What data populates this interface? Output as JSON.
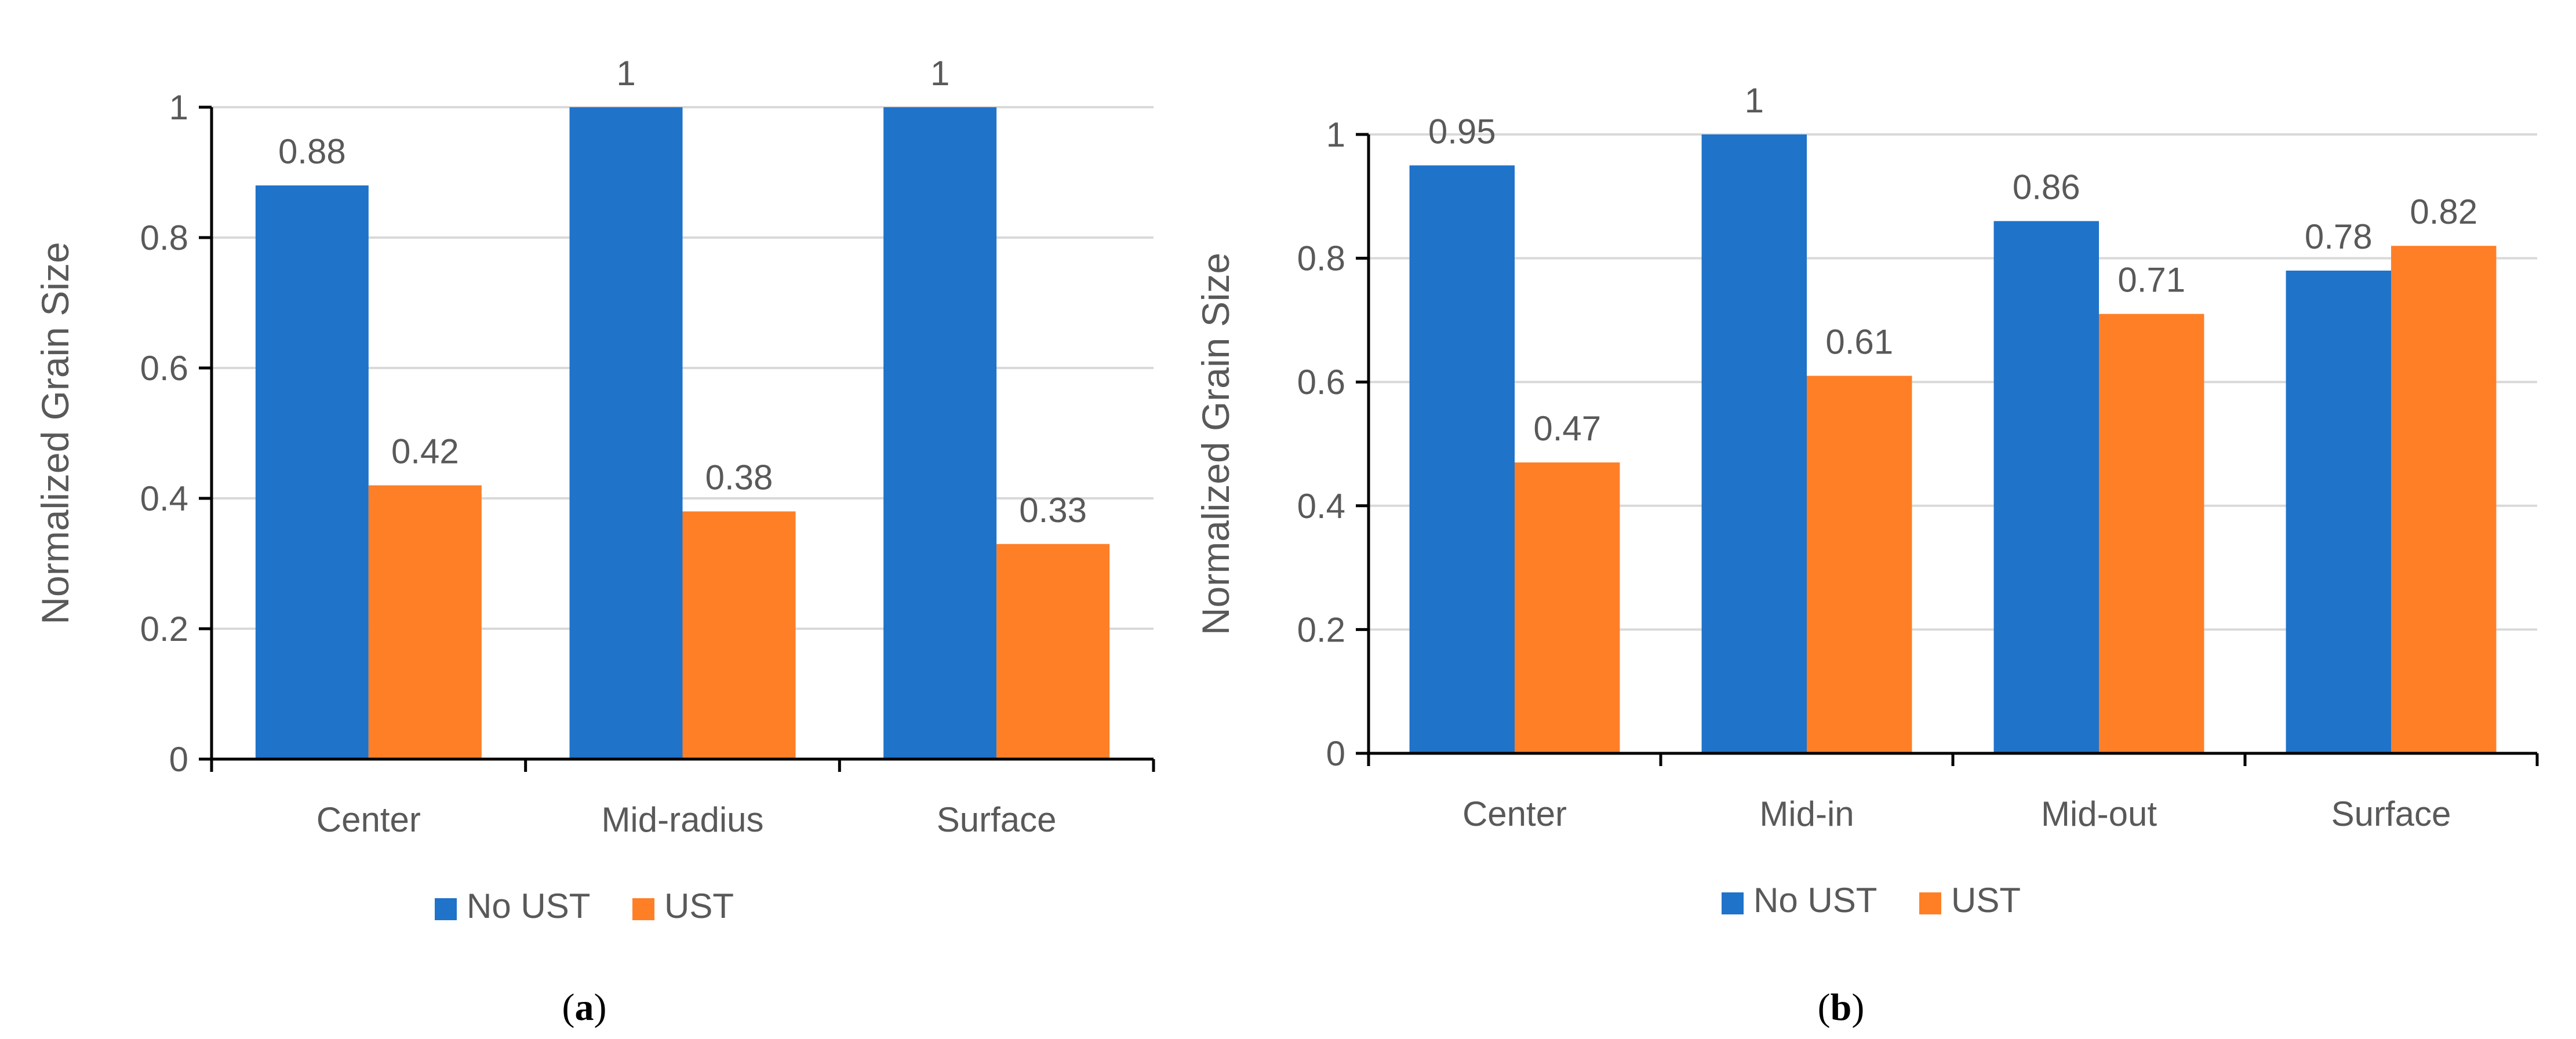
{
  "chart_data": [
    {
      "type": "bar",
      "panel_label": "a",
      "categories": [
        "Center",
        "Mid-radius",
        "Surface"
      ],
      "series": [
        {
          "name": "No UST",
          "values": [
            0.88,
            1,
            1
          ],
          "color": "#1F73C9"
        },
        {
          "name": "UST",
          "values": [
            0.42,
            0.38,
            0.33
          ],
          "color": "#FF7F27"
        }
      ],
      "data_labels": [
        [
          "0.88",
          "1",
          "1"
        ],
        [
          "0.42",
          "0.38",
          "0.33"
        ]
      ],
      "ylabel": "Normalized Grain Size",
      "xlabel": "",
      "ylim": [
        0,
        1
      ],
      "yticks": [
        "0",
        "0.2",
        "0.4",
        "0.6",
        "0.8",
        "1"
      ],
      "ytick_values": [
        0,
        0.2,
        0.4,
        0.6,
        0.8,
        1
      ],
      "grid": true,
      "legend_position": "bottom"
    },
    {
      "type": "bar",
      "panel_label": "b",
      "categories": [
        "Center",
        "Mid-in",
        "Mid-out",
        "Surface"
      ],
      "series": [
        {
          "name": "No UST",
          "values": [
            0.95,
            1,
            0.86,
            0.78
          ],
          "color": "#1F73C9"
        },
        {
          "name": "UST",
          "values": [
            0.47,
            0.61,
            0.71,
            0.82
          ],
          "color": "#FF7F27"
        }
      ],
      "data_labels": [
        [
          "0.95",
          "1",
          "0.86",
          "0.78"
        ],
        [
          "0.47",
          "0.61",
          "0.71",
          "0.82"
        ]
      ],
      "ylabel": "Normalized Grain Size",
      "xlabel": "",
      "ylim": [
        0,
        1
      ],
      "yticks": [
        "0",
        "0.2",
        "0.4",
        "0.6",
        "0.8",
        "1"
      ],
      "ytick_values": [
        0,
        0.2,
        0.4,
        0.6,
        0.8,
        1
      ],
      "grid": true,
      "legend_position": "bottom"
    }
  ],
  "colors": {
    "axis": "#000000",
    "grid": "#D9D9D9",
    "text": "#595959"
  }
}
